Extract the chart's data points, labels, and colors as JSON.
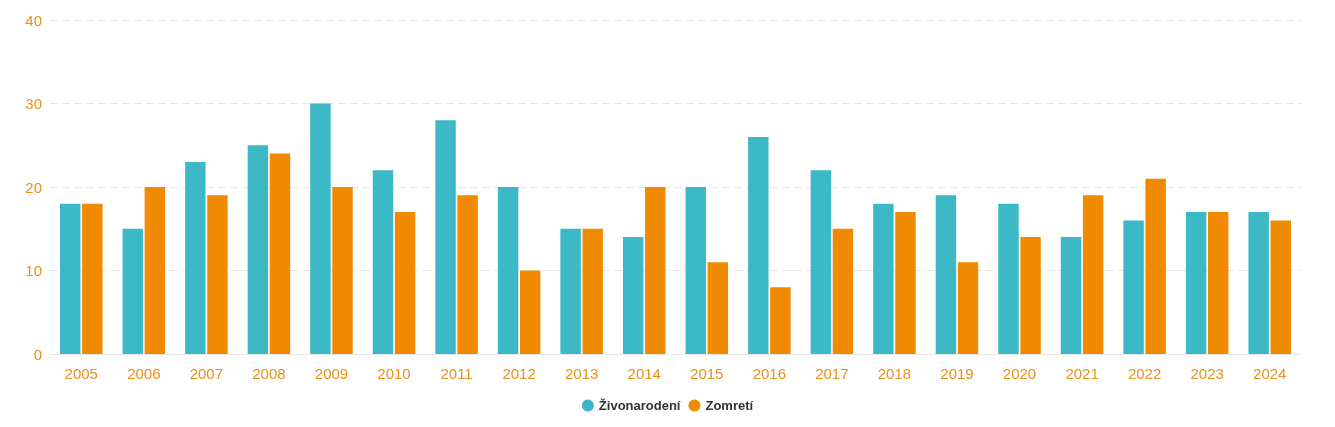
{
  "chart_data": {
    "type": "bar",
    "categories": [
      "2005",
      "2006",
      "2007",
      "2008",
      "2009",
      "2010",
      "2011",
      "2012",
      "2013",
      "2014",
      "2015",
      "2016",
      "2017",
      "2018",
      "2019",
      "2020",
      "2021",
      "2022",
      "2023",
      "2024"
    ],
    "series": [
      {
        "name": "Živonarodení",
        "color": "#3db8c6",
        "values": [
          18,
          15,
          23,
          25,
          30,
          22,
          28,
          20,
          15,
          14,
          20,
          26,
          22,
          18,
          19,
          18,
          14,
          16,
          17,
          17
        ]
      },
      {
        "name": "Zomretí",
        "color": "#f08a00",
        "values": [
          18,
          20,
          19,
          24,
          20,
          17,
          19,
          10,
          15,
          20,
          11,
          8,
          15,
          17,
          11,
          14,
          19,
          21,
          17,
          16
        ]
      }
    ],
    "ylim": [
      0,
      40
    ],
    "yticks": [
      0,
      10,
      20,
      30,
      40
    ],
    "grid": "y",
    "legend": "bottom"
  }
}
